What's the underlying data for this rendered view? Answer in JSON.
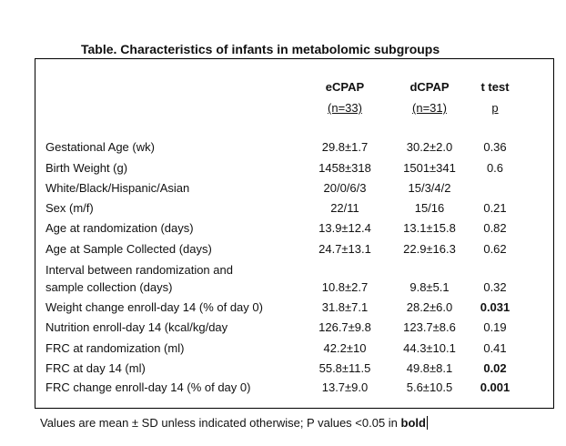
{
  "title": "Table. Characteristics of infants in metabolomic subgroups",
  "columns": [
    {
      "header": "eCPAP",
      "sub": "(n=33)"
    },
    {
      "header": "dCPAP",
      "sub": "(n=31)"
    },
    {
      "header": "t test",
      "sub": "p"
    }
  ],
  "rows": [
    {
      "label": [
        "Gestational Age (wk)"
      ],
      "ecpap": "29.8±1.7",
      "dcpap": "30.2±2.0",
      "p": "0.36",
      "bold": false
    },
    {
      "label": [
        "Birth Weight (g)"
      ],
      "ecpap": "1458±318",
      "dcpap": "1501±341",
      "p": "0.6",
      "bold": false
    },
    {
      "label": [
        "White/Black/Hispanic/Asian"
      ],
      "ecpap": "20/0/6/3",
      "dcpap": "15/3/4/2",
      "p": "",
      "bold": false
    },
    {
      "label": [
        "Sex (m/f)"
      ],
      "ecpap": "22/11",
      "dcpap": "15/16",
      "p": "0.21",
      "bold": false
    },
    {
      "label": [
        "Age at randomization (days)"
      ],
      "ecpap": "13.9±12.4",
      "dcpap": "13.1±15.8",
      "p": "0.82",
      "bold": false
    },
    {
      "label": [
        "Age at Sample Collected (days)"
      ],
      "ecpap": "24.7±13.1",
      "dcpap": "22.9±16.3",
      "p": "0.62",
      "bold": false
    },
    {
      "label": [
        "Interval between randomization and",
        "sample collection (days)"
      ],
      "ecpap": "10.8±2.7",
      "dcpap": "9.8±5.1",
      "p": "0.32",
      "bold": false
    },
    {
      "label": [
        "Weight change enroll-day 14 (% of day 0)"
      ],
      "ecpap": "31.8±7.1",
      "dcpap": "28.2±6.0",
      "p": "0.031",
      "bold": true
    },
    {
      "label": [
        "Nutrition enroll-day 14 (kcal/kg/day"
      ],
      "ecpap": "126.7±9.8",
      "dcpap": "123.7±8.6",
      "p": "0.19",
      "bold": false
    },
    {
      "label": [
        "FRC at randomization  (ml)"
      ],
      "ecpap": "42.2±10",
      "dcpap": "44.3±10.1",
      "p": "0.41",
      "bold": false
    },
    {
      "label": [
        "FRC at day 14 (ml)"
      ],
      "ecpap": "55.8±11.5",
      "dcpap": "49.8±8.1",
      "p": "0.02",
      "bold": true
    },
    {
      "label": [
        "FRC change enroll-day 14 (% of day 0)"
      ],
      "ecpap": "13.7±9.0",
      "dcpap": "5.6±10.5",
      "p": "0.001",
      "bold": true
    }
  ],
  "footnote": {
    "text": "Values are mean ± SD unless indicated otherwise; P values <0.05 in ",
    "bold_word": "bold"
  }
}
